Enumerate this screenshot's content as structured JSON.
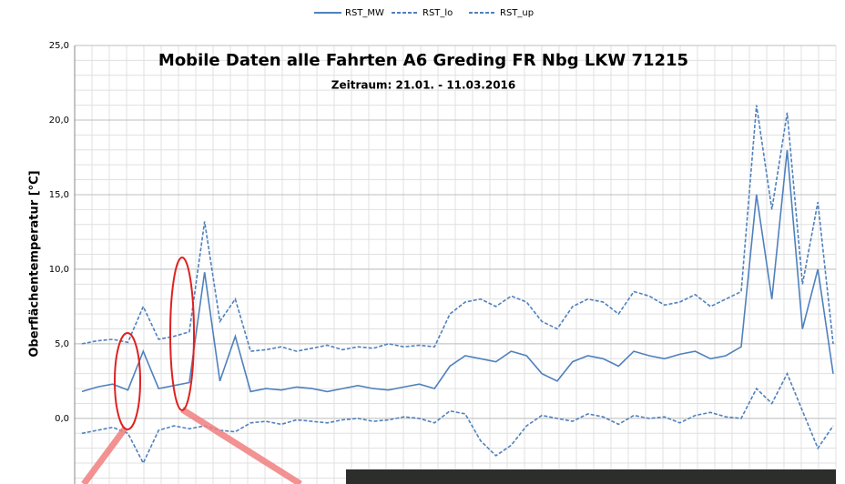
{
  "chart_data": {
    "type": "line",
    "title": "Mobile Daten alle Fahrten A6 Greding FR Nbg LKW 71215",
    "subtitle": "Zeitraum: 21.01. - 11.03.2016",
    "y_label": "Oberflächentemperatur [°C]",
    "ylim": [
      -4.4,
      25
    ],
    "yticks": [
      {
        "value": 0,
        "label": "0,0"
      },
      {
        "value": 5,
        "label": "5,0"
      },
      {
        "value": 10,
        "label": "10,0"
      },
      {
        "value": 15,
        "label": "15,0"
      },
      {
        "value": 20,
        "label": "20,0"
      },
      {
        "value": 25,
        "label": "25,0"
      }
    ],
    "grid": true,
    "legend": "top",
    "series": [
      {
        "name": "RST_MW",
        "color": "#4f81bd",
        "dash": "solid",
        "values": [
          1.8,
          2.1,
          2.3,
          1.9,
          4.5,
          2.0,
          2.2,
          2.4,
          9.8,
          2.5,
          5.5,
          1.8,
          2.0,
          1.9,
          2.1,
          2.0,
          1.8,
          2.0,
          2.2,
          2.0,
          1.9,
          2.1,
          2.3,
          2.0,
          3.5,
          4.2,
          4.0,
          3.8,
          4.5,
          4.2,
          3.0,
          2.5,
          3.8,
          4.2,
          4.0,
          3.5,
          4.5,
          4.2,
          4.0,
          4.3,
          4.5,
          4.0,
          4.2,
          4.8,
          15.0,
          8.0,
          18.0,
          6.0,
          10.0,
          3.0
        ]
      },
      {
        "name": "RST_lo",
        "color": "#4f81bd",
        "dash": "dashed",
        "values": [
          -1.0,
          -0.8,
          -0.6,
          -1.0,
          -3.0,
          -0.8,
          -0.5,
          -0.7,
          -0.5,
          -0.8,
          -0.9,
          -0.3,
          -0.2,
          -0.4,
          -0.1,
          -0.2,
          -0.3,
          -0.1,
          0.0,
          -0.2,
          -0.1,
          0.1,
          0.0,
          -0.3,
          0.5,
          0.3,
          -1.5,
          -2.5,
          -1.8,
          -0.5,
          0.2,
          0.0,
          -0.2,
          0.3,
          0.1,
          -0.4,
          0.2,
          0.0,
          0.1,
          -0.3,
          0.2,
          0.4,
          0.1,
          0.0,
          2.0,
          1.0,
          3.0,
          0.5,
          -2.0,
          -0.5
        ]
      },
      {
        "name": "RST_up",
        "color": "#4f81bd",
        "dash": "dashed",
        "values": [
          5.0,
          5.2,
          5.3,
          5.1,
          7.5,
          5.3,
          5.5,
          5.8,
          13.2,
          6.5,
          8.0,
          4.5,
          4.6,
          4.8,
          4.5,
          4.7,
          4.9,
          4.6,
          4.8,
          4.7,
          5.0,
          4.8,
          4.9,
          4.8,
          7.0,
          7.8,
          8.0,
          7.5,
          8.2,
          7.8,
          6.5,
          6.0,
          7.5,
          8.0,
          7.8,
          7.0,
          8.5,
          8.2,
          7.6,
          7.8,
          8.3,
          7.5,
          8.0,
          8.5,
          21.0,
          14.0,
          20.5,
          9.0,
          14.5,
          5.0
        ]
      }
    ]
  }
}
